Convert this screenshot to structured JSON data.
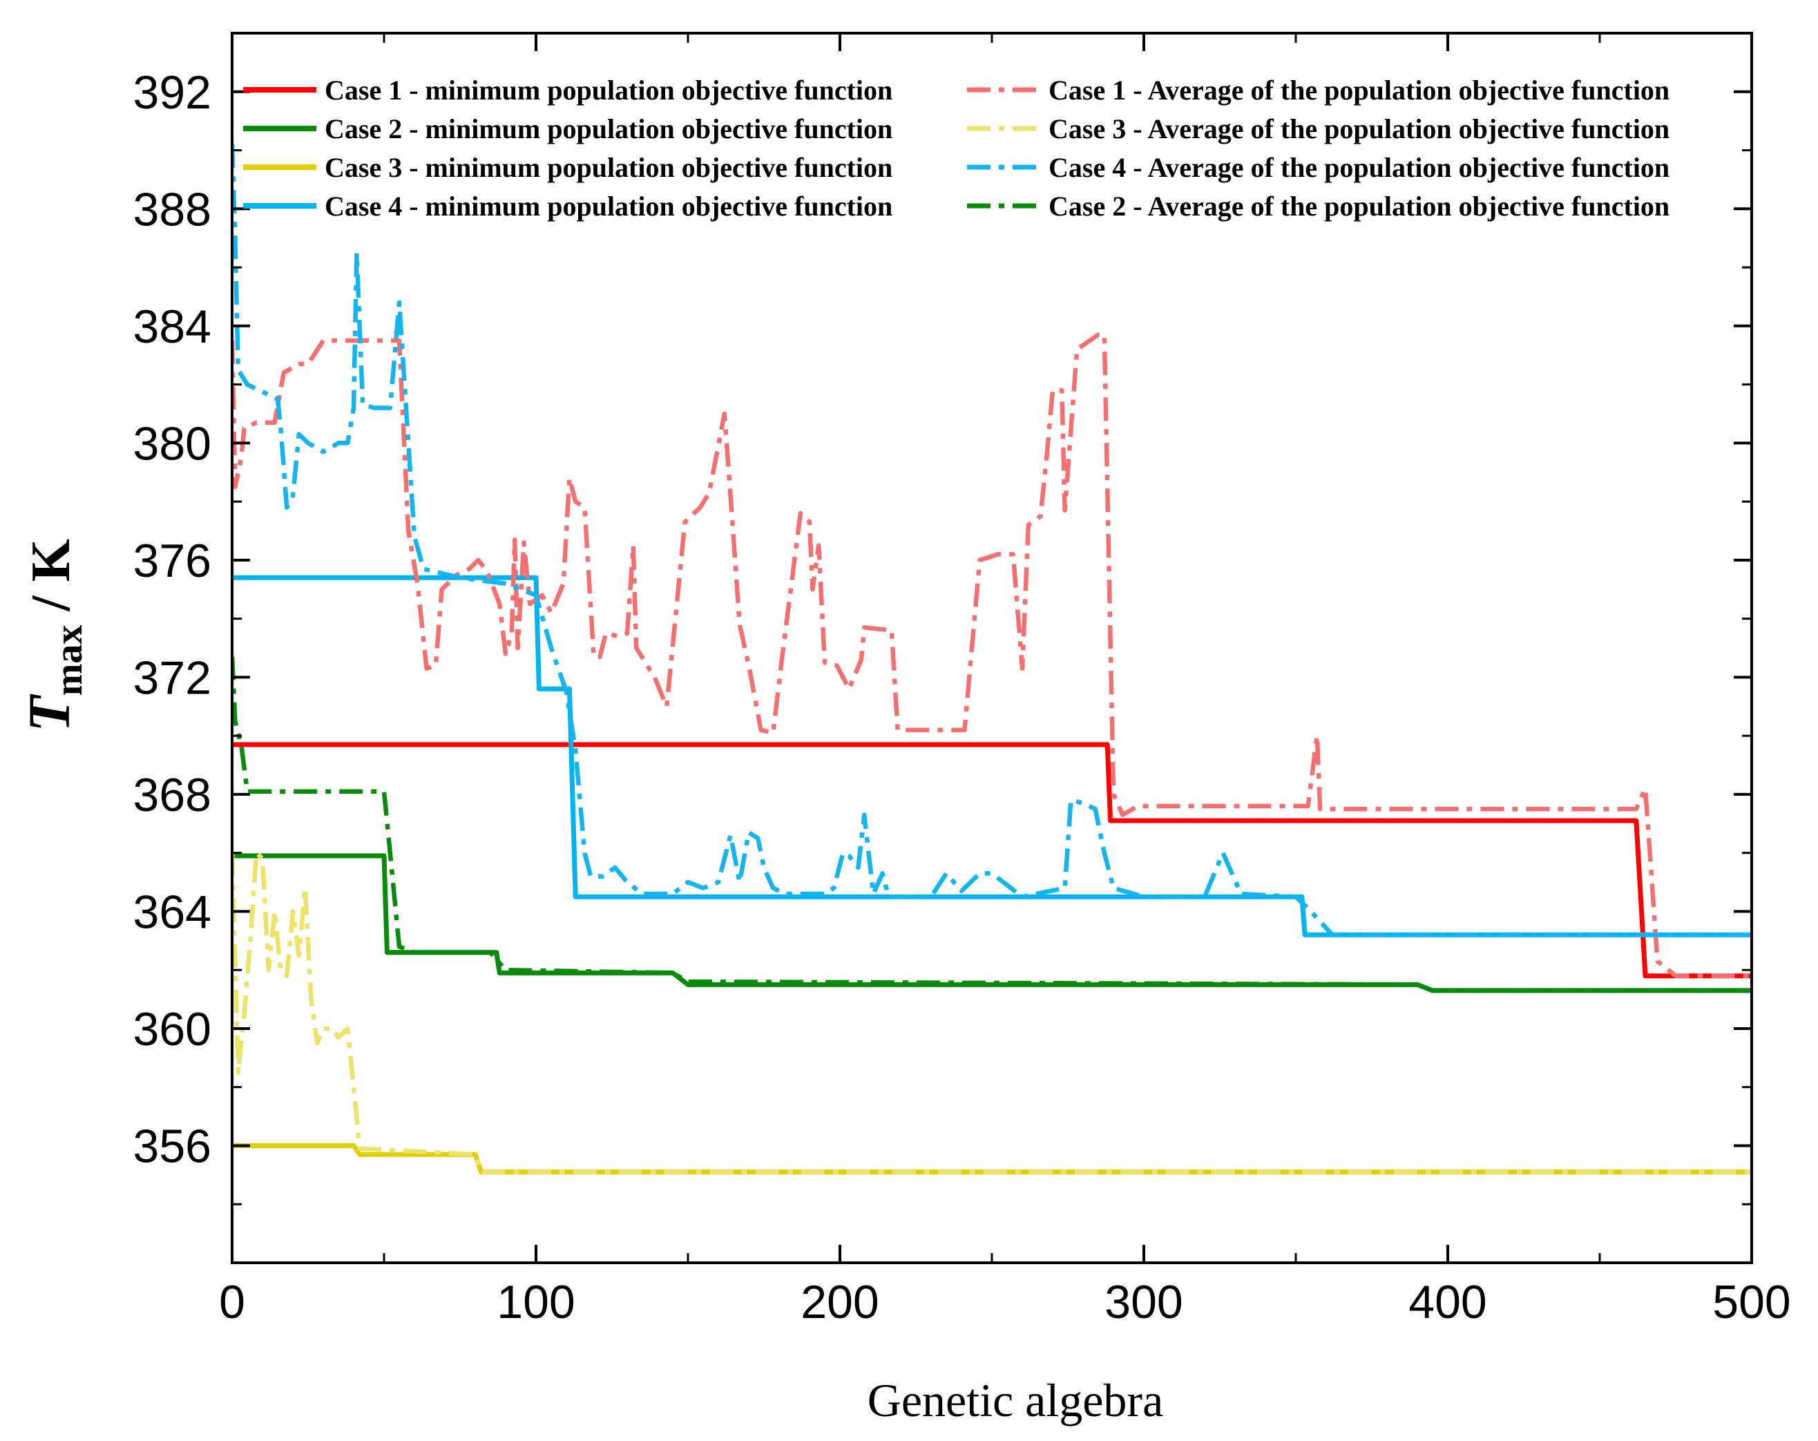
{
  "chart_data": {
    "type": "line",
    "title": "",
    "xlabel": "Genetic algebra",
    "ylabel": {
      "main": "T",
      "sub": "max",
      "unit": " / K"
    },
    "xlim": [
      0,
      500
    ],
    "ylim": [
      352,
      394
    ],
    "xticks": [
      0,
      100,
      200,
      300,
      400,
      500
    ],
    "yticks": [
      356,
      360,
      364,
      368,
      372,
      376,
      380,
      384,
      388,
      392
    ],
    "grid": false,
    "legend_position": "top",
    "series": [
      {
        "name": "Case 1 - minimum population objective function",
        "color": "#ff0000",
        "style": "solid",
        "points": [
          [
            0,
            369.7
          ],
          [
            288,
            369.7
          ],
          [
            289,
            367.1
          ],
          [
            462,
            367.1
          ],
          [
            465,
            361.8
          ],
          [
            500,
            361.8
          ]
        ]
      },
      {
        "name": "Case 2 - minimum population objective function",
        "color": "#0a8a0a",
        "style": "solid",
        "points": [
          [
            0,
            365.9
          ],
          [
            50,
            365.9
          ],
          [
            51,
            362.6
          ],
          [
            87,
            362.6
          ],
          [
            88,
            361.9
          ],
          [
            145,
            361.9
          ],
          [
            150,
            361.5
          ],
          [
            390,
            361.5
          ],
          [
            395,
            361.3
          ],
          [
            500,
            361.3
          ]
        ]
      },
      {
        "name": "Case 3 - minimum population objective function",
        "color": "#e0d000",
        "style": "solid",
        "points": [
          [
            0,
            356.0
          ],
          [
            40,
            356.0
          ],
          [
            42,
            355.7
          ],
          [
            80,
            355.7
          ],
          [
            82,
            355.1
          ],
          [
            500,
            355.1
          ]
        ]
      },
      {
        "name": "Case 4 - minimum population objective function",
        "color": "#00b4f0",
        "style": "solid",
        "points": [
          [
            0,
            375.4
          ],
          [
            100,
            375.4
          ],
          [
            101,
            371.6
          ],
          [
            111,
            371.6
          ],
          [
            113,
            364.5
          ],
          [
            352,
            364.5
          ],
          [
            353,
            363.2
          ],
          [
            500,
            363.2
          ]
        ]
      },
      {
        "name": "Case 1 - Average of the population objective function",
        "color": "#f47070",
        "style": "dashdot",
        "points": [
          [
            0,
            383.5
          ],
          [
            1,
            378.5
          ],
          [
            3,
            379.5
          ],
          [
            4,
            380.5
          ],
          [
            8,
            380.7
          ],
          [
            14,
            380.7
          ],
          [
            17,
            382.4
          ],
          [
            22,
            382.7
          ],
          [
            25,
            382.7
          ],
          [
            30,
            383.5
          ],
          [
            55,
            383.5
          ],
          [
            58,
            377.0
          ],
          [
            61,
            375.2
          ],
          [
            64,
            372.3
          ],
          [
            67,
            372.4
          ],
          [
            69,
            375.0
          ],
          [
            74,
            375.5
          ],
          [
            78,
            375.7
          ],
          [
            81,
            376.0
          ],
          [
            84,
            375.6
          ],
          [
            88,
            374.5
          ],
          [
            90,
            372.8
          ],
          [
            92,
            373.5
          ],
          [
            93,
            376.7
          ],
          [
            94,
            373.0
          ],
          [
            96,
            376.6
          ],
          [
            98,
            374.5
          ],
          [
            102,
            374.8
          ],
          [
            105,
            374.2
          ],
          [
            109,
            375.2
          ],
          [
            111,
            378.8
          ],
          [
            113,
            378.0
          ],
          [
            116,
            377.8
          ],
          [
            119,
            372.7
          ],
          [
            121,
            372.7
          ],
          [
            123,
            373.5
          ],
          [
            127,
            373.4
          ],
          [
            130,
            373.5
          ],
          [
            132,
            376.5
          ],
          [
            133,
            373.0
          ],
          [
            139,
            372.0
          ],
          [
            143,
            371.0
          ],
          [
            149,
            377.3
          ],
          [
            154,
            377.8
          ],
          [
            157,
            378.3
          ],
          [
            162,
            381.0
          ],
          [
            164,
            378.2
          ],
          [
            167,
            373.8
          ],
          [
            170,
            372.4
          ],
          [
            174,
            370.2
          ],
          [
            178,
            370.1
          ],
          [
            181,
            372.7
          ],
          [
            187,
            377.6
          ],
          [
            190,
            377.3
          ],
          [
            191,
            375.0
          ],
          [
            193,
            376.5
          ],
          [
            195,
            372.5
          ],
          [
            199,
            372.4
          ],
          [
            203,
            371.6
          ],
          [
            207,
            372.6
          ],
          [
            208,
            373.7
          ],
          [
            217,
            373.6
          ],
          [
            219,
            370.2
          ],
          [
            230,
            370.2
          ],
          [
            241,
            370.2
          ],
          [
            246,
            376.0
          ],
          [
            252,
            376.2
          ],
          [
            257,
            376.2
          ],
          [
            260,
            372.3
          ],
          [
            262,
            377.2
          ],
          [
            266,
            377.5
          ],
          [
            268,
            379.5
          ],
          [
            270,
            381.8
          ],
          [
            273,
            381.8
          ],
          [
            274,
            377.7
          ],
          [
            278,
            383.2
          ],
          [
            285,
            383.7
          ],
          [
            287,
            383.7
          ],
          [
            290,
            368.0
          ],
          [
            293,
            367.3
          ],
          [
            298,
            367.6
          ],
          [
            354,
            367.6
          ],
          [
            357,
            370.0
          ],
          [
            358,
            367.5
          ],
          [
            462,
            367.5
          ],
          [
            465,
            368.2
          ],
          [
            469,
            362.3
          ],
          [
            475,
            361.8
          ],
          [
            500,
            361.8
          ]
        ]
      },
      {
        "name": "Case 3 - Average of the population objective function",
        "color": "#ece468",
        "style": "dashdot",
        "points": [
          [
            0,
            366.0
          ],
          [
            2,
            358.5
          ],
          [
            4,
            360.5
          ],
          [
            6,
            363.0
          ],
          [
            8,
            366.0
          ],
          [
            10,
            365.8
          ],
          [
            12,
            362.0
          ],
          [
            14,
            364.0
          ],
          [
            16,
            362.0
          ],
          [
            18,
            361.8
          ],
          [
            20,
            364.0
          ],
          [
            22,
            362.5
          ],
          [
            24,
            364.8
          ],
          [
            26,
            361.0
          ],
          [
            28,
            359.5
          ],
          [
            30,
            360.0
          ],
          [
            33,
            360.0
          ],
          [
            35,
            359.7
          ],
          [
            38,
            360.0
          ],
          [
            40,
            358.0
          ],
          [
            42,
            355.9
          ],
          [
            80,
            355.7
          ],
          [
            82,
            355.1
          ],
          [
            500,
            355.1
          ]
        ]
      },
      {
        "name": "Case 4 - Average of the population objective function",
        "color": "#14b4f0",
        "style": "dashdot",
        "points": [
          [
            0,
            390.2
          ],
          [
            1,
            387.0
          ],
          [
            2,
            382.5
          ],
          [
            5,
            382.0
          ],
          [
            15,
            381.5
          ],
          [
            16,
            380.5
          ],
          [
            18,
            377.8
          ],
          [
            20,
            378.2
          ],
          [
            22,
            380.3
          ],
          [
            25,
            380.0
          ],
          [
            30,
            379.7
          ],
          [
            35,
            380.0
          ],
          [
            38,
            380.0
          ],
          [
            40,
            381.2
          ],
          [
            41,
            386.5
          ],
          [
            43,
            381.3
          ],
          [
            47,
            381.2
          ],
          [
            52,
            381.2
          ],
          [
            55,
            384.8
          ],
          [
            58,
            380.0
          ],
          [
            60,
            376.8
          ],
          [
            63,
            375.7
          ],
          [
            75,
            375.4
          ],
          [
            90,
            375.2
          ],
          [
            100,
            374.8
          ],
          [
            105,
            373.0
          ],
          [
            110,
            371.5
          ],
          [
            113,
            369.5
          ],
          [
            116,
            366.0
          ],
          [
            118,
            365.2
          ],
          [
            122,
            365.2
          ],
          [
            126,
            365.5
          ],
          [
            130,
            365.0
          ],
          [
            135,
            364.6
          ],
          [
            145,
            364.6
          ],
          [
            150,
            365.0
          ],
          [
            155,
            364.8
          ],
          [
            160,
            365.0
          ],
          [
            164,
            366.6
          ],
          [
            167,
            365.0
          ],
          [
            170,
            366.7
          ],
          [
            173,
            366.5
          ],
          [
            175,
            365.5
          ],
          [
            178,
            364.8
          ],
          [
            182,
            364.6
          ],
          [
            195,
            364.6
          ],
          [
            198,
            364.8
          ],
          [
            201,
            366.0
          ],
          [
            203,
            365.9
          ],
          [
            206,
            365.5
          ],
          [
            208,
            367.3
          ],
          [
            211,
            364.6
          ],
          [
            214,
            365.3
          ],
          [
            216,
            364.5
          ],
          [
            230,
            364.5
          ],
          [
            235,
            365.3
          ],
          [
            240,
            364.7
          ],
          [
            246,
            365.3
          ],
          [
            250,
            365.3
          ],
          [
            260,
            364.5
          ],
          [
            274,
            364.8
          ],
          [
            276,
            367.8
          ],
          [
            280,
            367.7
          ],
          [
            284,
            367.5
          ],
          [
            287,
            366.0
          ],
          [
            290,
            364.8
          ],
          [
            300,
            364.5
          ],
          [
            320,
            364.5
          ],
          [
            326,
            366.0
          ],
          [
            332,
            364.6
          ],
          [
            350,
            364.5
          ],
          [
            355,
            364.0
          ],
          [
            362,
            363.2
          ],
          [
            500,
            363.2
          ]
        ]
      },
      {
        "name": "Case 2 - Average of the population objective function",
        "color": "#0a8a0a",
        "style": "dashdot",
        "points": [
          [
            0,
            372.7
          ],
          [
            1,
            370.5
          ],
          [
            3,
            369.7
          ],
          [
            5,
            368.1
          ],
          [
            10,
            368.1
          ],
          [
            50,
            368.1
          ],
          [
            52,
            366.0
          ],
          [
            55,
            362.8
          ],
          [
            60,
            362.6
          ],
          [
            85,
            362.6
          ],
          [
            90,
            362.0
          ],
          [
            145,
            361.9
          ],
          [
            150,
            361.6
          ],
          [
            390,
            361.5
          ],
          [
            395,
            361.3
          ],
          [
            500,
            361.3
          ]
        ]
      }
    ]
  }
}
